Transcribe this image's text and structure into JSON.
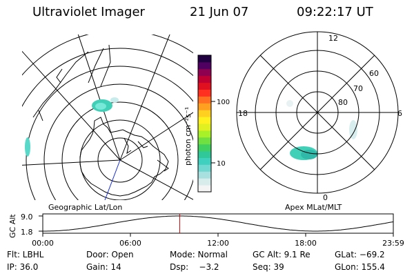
{
  "header": {
    "instrument": "Ultraviolet Imager",
    "date": "21 Jun 07",
    "time": "09:22:17 UT"
  },
  "colorbar": {
    "label": "photon cm⁻²s⁻¹",
    "tick_100": "100",
    "tick_10": "10",
    "colors": [
      "#f4f4f4",
      "#d8ecec",
      "#a8e0e0",
      "#70d8d0",
      "#40d0c0",
      "#30c898",
      "#40d060",
      "#70e040",
      "#a8f028",
      "#e0f020",
      "#fff020",
      "#ffd020",
      "#ffa020",
      "#ff7020",
      "#ff3020",
      "#e01020",
      "#c00030",
      "#900050",
      "#500060",
      "#200040"
    ]
  },
  "geo_map": {
    "title": "Geographic Lat/Lon"
  },
  "mag_map": {
    "title": "Apex MLat/MLT",
    "lat_60": "60",
    "lat_70": "70",
    "lat_80": "80",
    "mlt_12": "12",
    "mlt_18": "18",
    "mlt_6": "6",
    "mlt_0": "0"
  },
  "timeline": {
    "ylabel": "GC Alt",
    "ytick_top": "9.0",
    "ytick_bottom": "1.8",
    "xticks": [
      "00:00",
      "06:00",
      "12:00",
      "18:00",
      "23:59"
    ],
    "current_fraction": 0.3905,
    "marker_color": "#c00000"
  },
  "footer": {
    "row1": {
      "filter": "Flt: LBHL",
      "door": "Door: Open",
      "mode": "Mode: Normal",
      "gc_alt": "GC Alt: 9.1 Re",
      "glat": "GLat: −69.2"
    },
    "row2": {
      "ip": "IP: 36.0",
      "gain": "Gain: 14",
      "dsp": "Dsp:    −3.2",
      "seq": "Seq: 39",
      "glon": "GLon: 155.4"
    }
  }
}
